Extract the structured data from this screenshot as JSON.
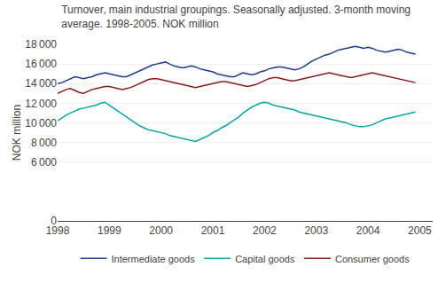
{
  "chart_data": {
    "type": "line",
    "title": "Turnover, main industrial groupings. Seasonally adjusted. 3-month moving\naverage. 1998-2005. NOK million",
    "ylabel": "NOK million",
    "x": [
      1998.0,
      1998.0833,
      1998.1667,
      1998.25,
      1998.3333,
      1998.4167,
      1998.5,
      1998.5833,
      1998.6667,
      1998.75,
      1998.8333,
      1998.9167,
      1999.0,
      1999.0833,
      1999.1667,
      1999.25,
      1999.3333,
      1999.4167,
      1999.5,
      1999.5833,
      1999.6667,
      1999.75,
      1999.8333,
      1999.9167,
      2000.0,
      2000.0833,
      2000.1667,
      2000.25,
      2000.3333,
      2000.4167,
      2000.5,
      2000.5833,
      2000.6667,
      2000.75,
      2000.8333,
      2000.9167,
      2001.0,
      2001.0833,
      2001.1667,
      2001.25,
      2001.3333,
      2001.4167,
      2001.5,
      2001.5833,
      2001.6667,
      2001.75,
      2001.8333,
      2001.9167,
      2002.0,
      2002.0833,
      2002.1667,
      2002.25,
      2002.3333,
      2002.4167,
      2002.5,
      2002.5833,
      2002.6667,
      2002.75,
      2002.8333,
      2002.9167,
      2003.0,
      2003.0833,
      2003.1667,
      2003.25,
      2003.3333,
      2003.4167,
      2003.5,
      2003.5833,
      2003.6667,
      2003.75,
      2003.8333,
      2003.9167,
      2004.0,
      2004.0833,
      2004.1667,
      2004.25,
      2004.3333,
      2004.4167,
      2004.5,
      2004.5833,
      2004.6667,
      2004.75,
      2004.8333,
      2004.9167
    ],
    "series": [
      {
        "name": "Intermediate goods",
        "color": "#1f3a8f",
        "values": [
          14000,
          14100,
          14300,
          14500,
          14700,
          14600,
          14500,
          14600,
          14700,
          14900,
          15000,
          15100,
          15000,
          14900,
          14800,
          14700,
          14700,
          14900,
          15100,
          15300,
          15500,
          15700,
          15900,
          16000,
          16100,
          16200,
          16000,
          15800,
          15700,
          15600,
          15700,
          15800,
          15700,
          15500,
          15400,
          15300,
          15200,
          15000,
          14900,
          14800,
          14700,
          14700,
          14900,
          15100,
          15000,
          14900,
          15000,
          15200,
          15300,
          15500,
          15600,
          15700,
          15700,
          15600,
          15500,
          15400,
          15500,
          15700,
          16000,
          16300,
          16500,
          16700,
          16900,
          17000,
          17200,
          17400,
          17500,
          17600,
          17700,
          17800,
          17700,
          17600,
          17700,
          17600,
          17400,
          17300,
          17200,
          17300,
          17400,
          17500,
          17400,
          17200,
          17100,
          17000
        ]
      },
      {
        "name": "Capital goods",
        "color": "#00a8a8",
        "values": [
          10200,
          10500,
          10800,
          11000,
          11200,
          11400,
          11500,
          11600,
          11700,
          11800,
          12000,
          12100,
          11800,
          11500,
          11200,
          10900,
          10600,
          10300,
          10000,
          9700,
          9500,
          9300,
          9200,
          9100,
          9000,
          8900,
          8700,
          8600,
          8500,
          8400,
          8300,
          8200,
          8100,
          8300,
          8500,
          8700,
          9000,
          9200,
          9500,
          9700,
          10000,
          10300,
          10600,
          11000,
          11300,
          11600,
          11800,
          12000,
          12100,
          12000,
          11800,
          11700,
          11600,
          11500,
          11400,
          11300,
          11100,
          11000,
          10900,
          10800,
          10700,
          10600,
          10500,
          10400,
          10300,
          10200,
          10100,
          10000,
          9800,
          9700,
          9600,
          9600,
          9700,
          9800,
          10000,
          10200,
          10400,
          10500,
          10600,
          10700,
          10800,
          10900,
          11000,
          11100
        ]
      },
      {
        "name": "Consumer goods",
        "color": "#8b1a1a",
        "values": [
          13000,
          13200,
          13400,
          13500,
          13300,
          13100,
          13000,
          13200,
          13400,
          13500,
          13600,
          13700,
          13700,
          13600,
          13500,
          13400,
          13500,
          13600,
          13800,
          14000,
          14200,
          14400,
          14500,
          14500,
          14400,
          14300,
          14200,
          14100,
          14000,
          13900,
          13800,
          13700,
          13600,
          13700,
          13800,
          13900,
          14000,
          14100,
          14200,
          14200,
          14100,
          14000,
          13900,
          13800,
          13700,
          13800,
          13900,
          14100,
          14300,
          14500,
          14600,
          14600,
          14500,
          14400,
          14300,
          14300,
          14400,
          14500,
          14600,
          14700,
          14800,
          14900,
          15000,
          15100,
          15000,
          14900,
          14800,
          14700,
          14600,
          14700,
          14800,
          14900,
          15000,
          15100,
          15000,
          14900,
          14800,
          14700,
          14600,
          14500,
          14400,
          14300,
          14200,
          14100
        ]
      }
    ],
    "xlim": [
      1998.0,
      2005.25
    ],
    "xticks": [
      1998,
      1999,
      2000,
      2001,
      2002,
      2003,
      2004,
      2005
    ],
    "ylim": [
      0,
      18000
    ],
    "yticks": [
      0,
      {
        "value": 6000,
        "label": "6 000"
      },
      {
        "value": 8000,
        "label": "8 000"
      },
      {
        "value": 10000,
        "label": "10 000"
      },
      {
        "value": 12000,
        "label": "12 000"
      },
      {
        "value": 14000,
        "label": "14 000"
      },
      {
        "value": 16000,
        "label": "16 000"
      },
      {
        "value": 18000,
        "label": "18 000"
      }
    ],
    "grid": "y",
    "legend": "bottom"
  }
}
